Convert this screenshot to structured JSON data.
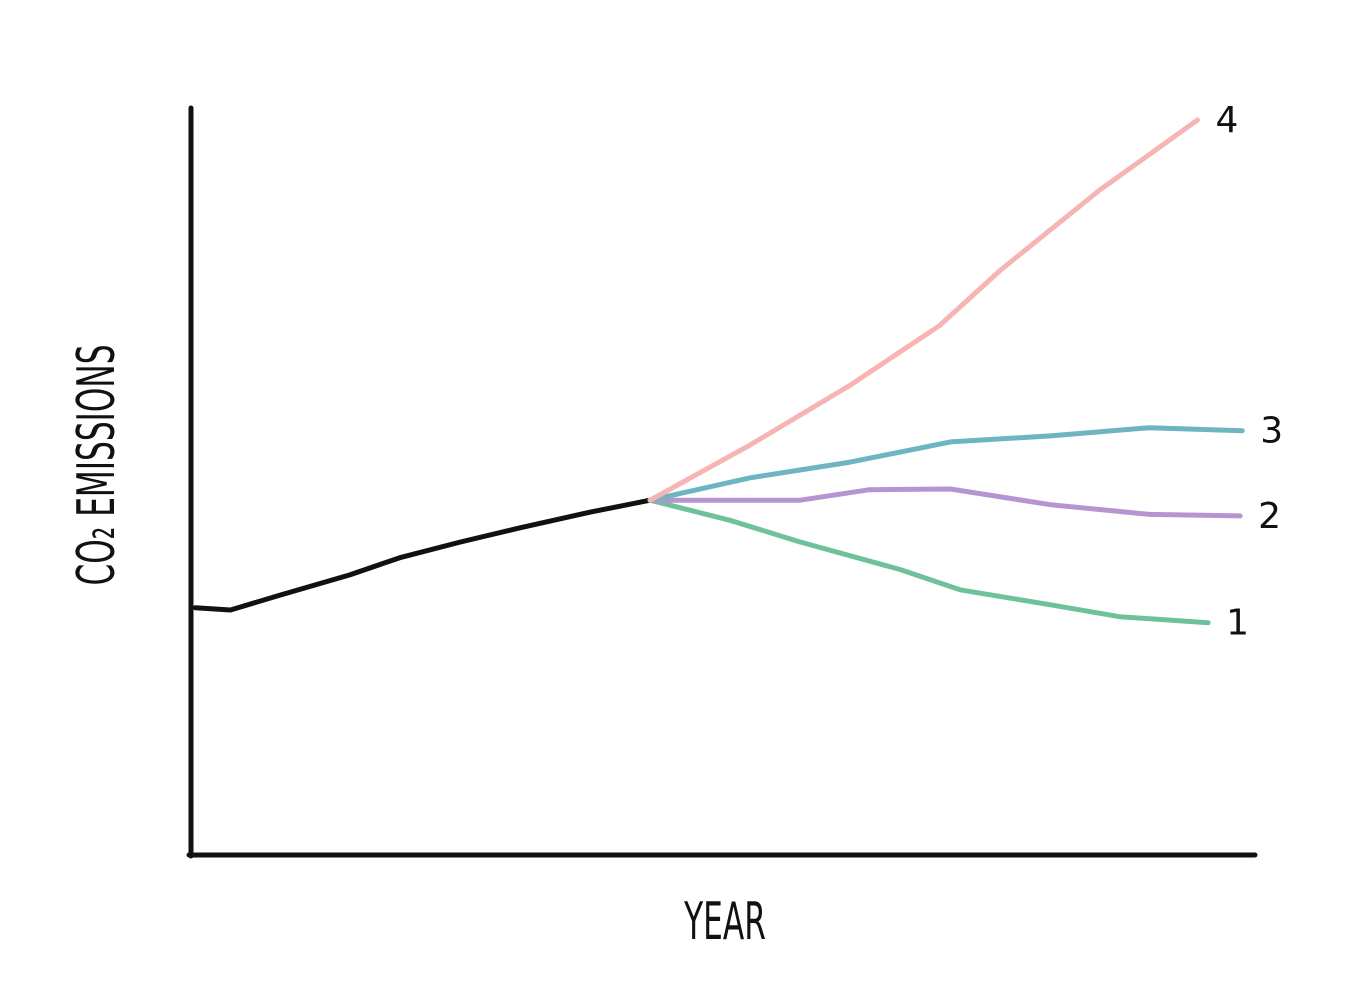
{
  "chart_data": {
    "type": "line",
    "xlabel": "YEAR",
    "ylabel": "CO₂ EMISSIONS",
    "xlim": [
      0,
      100
    ],
    "ylim": [
      0,
      100
    ],
    "series": [
      {
        "color": "#111111",
        "x": [
          0.5,
          3.8,
          8.5,
          15.0,
          19.7,
          25.4,
          31.0,
          37.6,
          43.2
        ],
        "values": [
          33.1,
          32.8,
          34.8,
          37.5,
          39.8,
          41.9,
          43.8,
          45.9,
          47.5
        ]
      },
      {
        "name": "1",
        "color": "#6fc19c",
        "x": [
          43.2,
          50.7,
          57.3,
          66.7,
          72.3,
          80.8,
          87.3,
          95.6
        ],
        "values": [
          47.5,
          44.8,
          41.9,
          38.2,
          35.5,
          33.5,
          31.9,
          31.1
        ]
      },
      {
        "name": "2",
        "color": "#b595cf",
        "x": [
          43.2,
          57.3,
          63.8,
          71.4,
          80.8,
          90.1,
          98.6
        ],
        "values": [
          47.5,
          47.5,
          48.9,
          49.0,
          46.9,
          45.6,
          45.4
        ]
      },
      {
        "name": "3",
        "color": "#6fb5c1",
        "x": [
          43.2,
          52.6,
          62.0,
          71.4,
          80.8,
          90.1,
          98.8
        ],
        "values": [
          47.5,
          50.5,
          52.6,
          55.3,
          56.1,
          57.2,
          56.8
        ]
      },
      {
        "name": "4",
        "color": "#f6b5b2",
        "x": [
          43.2,
          52.6,
          62.0,
          70.4,
          76.1,
          85.4,
          94.6
        ],
        "values": [
          47.5,
          54.9,
          62.9,
          70.9,
          78.3,
          89.0,
          98.4
        ]
      }
    ]
  }
}
